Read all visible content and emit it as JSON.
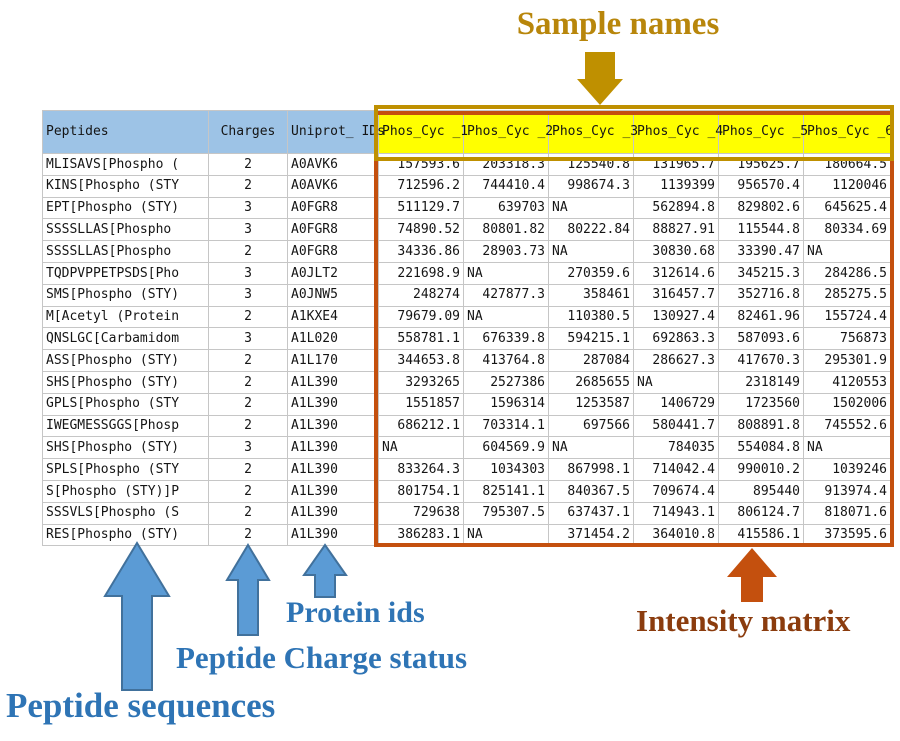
{
  "annotations": {
    "sample_names": "Sample names",
    "protein_ids": "Protein ids",
    "peptide_charge_status": "Peptide Charge status",
    "peptide_sequences": "Peptide sequences",
    "intensity_matrix": "Intensity matrix"
  },
  "colors": {
    "header_fill_blue": "#9DC3E6",
    "sample_header_yellow": "#FFFF00",
    "gold_annotation": "#B8860B",
    "gold_arrow": "#BF9000",
    "blue_annotation_text": "#2E74B5",
    "blue_arrow_fill": "#5B9BD5",
    "blue_arrow_stroke": "#41719C",
    "orange_box_arrow": "#C4500E",
    "intensity_text": "#8B3C0E",
    "gridline": "#c6c6c6"
  },
  "table": {
    "headers": {
      "peptides": "Peptides",
      "charges": "Charges",
      "uniprot": "Uniprot_\nIDs"
    },
    "sample_columns": [
      "Phos_Cyc\n_1",
      "Phos_Cyc\n_2",
      "Phos_Cyc\n_3",
      "Phos_Cyc\n_4",
      "Phos_Cyc\n_5",
      "Phos_Cyc\n_6"
    ],
    "rows": [
      {
        "peptide": "MLISAVS[Phospho (",
        "charge": "2",
        "uniprot": "A0AVK6",
        "values": [
          "157593.6",
          "203318.3",
          "125540.8",
          "131965.7",
          "195625.7",
          "180664.5"
        ]
      },
      {
        "peptide": "KINS[Phospho (STY",
        "charge": "2",
        "uniprot": "A0AVK6",
        "values": [
          "712596.2",
          "744410.4",
          "998674.3",
          "1139399",
          "956570.4",
          "1120046"
        ]
      },
      {
        "peptide": "EPT[Phospho (STY)",
        "charge": "3",
        "uniprot": "A0FGR8",
        "values": [
          "511129.7",
          "639703",
          "NA",
          "562894.8",
          "829802.6",
          "645625.4"
        ]
      },
      {
        "peptide": "SSSSLLAS[Phospho",
        "charge": "3",
        "uniprot": "A0FGR8",
        "values": [
          "74890.52",
          "80801.82",
          "80222.84",
          "88827.91",
          "115544.8",
          "80334.69"
        ]
      },
      {
        "peptide": "SSSSLLAS[Phospho",
        "charge": "2",
        "uniprot": "A0FGR8",
        "values": [
          "34336.86",
          "28903.73",
          "NA",
          "30830.68",
          "33390.47",
          "NA"
        ]
      },
      {
        "peptide": "TQDPVPPETPSDS[Pho",
        "charge": "3",
        "uniprot": "A0JLT2",
        "values": [
          "221698.9",
          "NA",
          "270359.6",
          "312614.6",
          "345215.3",
          "284286.5"
        ]
      },
      {
        "peptide": "SMS[Phospho (STY)",
        "charge": "3",
        "uniprot": "A0JNW5",
        "values": [
          "248274",
          "427877.3",
          "358461",
          "316457.7",
          "352716.8",
          "285275.5"
        ]
      },
      {
        "peptide": "M[Acetyl (Protein",
        "charge": "2",
        "uniprot": "A1KXE4",
        "values": [
          "79679.09",
          "NA",
          "110380.5",
          "130927.4",
          "82461.96",
          "155724.4"
        ]
      },
      {
        "peptide": "QNSLGC[Carbamidom",
        "charge": "3",
        "uniprot": "A1L020",
        "values": [
          "558781.1",
          "676339.8",
          "594215.1",
          "692863.3",
          "587093.6",
          "756873"
        ]
      },
      {
        "peptide": "ASS[Phospho (STY)",
        "charge": "2",
        "uniprot": "A1L170",
        "values": [
          "344653.8",
          "413764.8",
          "287084",
          "286627.3",
          "417670.3",
          "295301.9"
        ]
      },
      {
        "peptide": "SHS[Phospho (STY)",
        "charge": "2",
        "uniprot": "A1L390",
        "values": [
          "3293265",
          "2527386",
          "2685655",
          "NA",
          "2318149",
          "4120553"
        ]
      },
      {
        "peptide": "GPLS[Phospho (STY",
        "charge": "2",
        "uniprot": "A1L390",
        "values": [
          "1551857",
          "1596314",
          "1253587",
          "1406729",
          "1723560",
          "1502006"
        ]
      },
      {
        "peptide": "IWEGMESSGGS[Phosp",
        "charge": "2",
        "uniprot": "A1L390",
        "values": [
          "686212.1",
          "703314.1",
          "697566",
          "580441.7",
          "808891.8",
          "745552.6"
        ]
      },
      {
        "peptide": "SHS[Phospho (STY)",
        "charge": "3",
        "uniprot": "A1L390",
        "values": [
          "NA",
          "604569.9",
          "NA",
          "784035",
          "554084.8",
          "NA"
        ]
      },
      {
        "peptide": "SPLS[Phospho (STY",
        "charge": "2",
        "uniprot": "A1L390",
        "values": [
          "833264.3",
          "1034303",
          "867998.1",
          "714042.4",
          "990010.2",
          "1039246"
        ]
      },
      {
        "peptide": "S[Phospho (STY)]P",
        "charge": "2",
        "uniprot": "A1L390",
        "values": [
          "801754.1",
          "825141.1",
          "840367.5",
          "709674.4",
          "895440",
          "913974.4"
        ]
      },
      {
        "peptide": "SSSVLS[Phospho (S",
        "charge": "2",
        "uniprot": "A1L390",
        "values": [
          "729638",
          "795307.5",
          "637437.1",
          "714943.1",
          "806124.7",
          "818071.6"
        ]
      },
      {
        "peptide": "RES[Phospho (STY)",
        "charge": "2",
        "uniprot": "A1L390",
        "values": [
          "386283.1",
          "NA",
          "371454.2",
          "364010.8",
          "415586.1",
          "373595.6"
        ]
      }
    ]
  }
}
